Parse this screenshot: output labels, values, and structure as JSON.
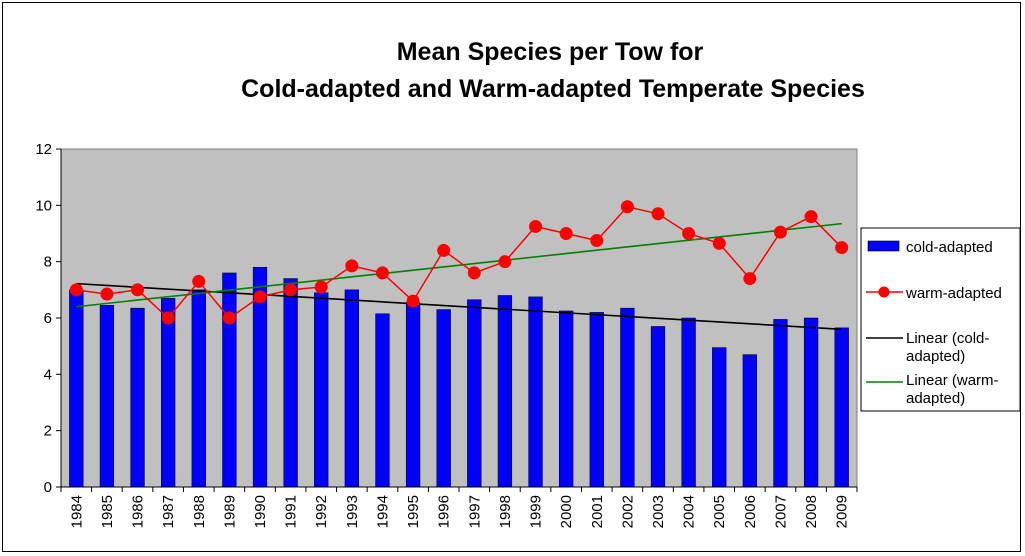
{
  "chart_data": {
    "type": "bar",
    "title": [
      "Mean Species per Tow for",
      "Cold-adapted and Warm-adapted Temperate Species"
    ],
    "xlabel": "",
    "ylabel": "",
    "categories": [
      "1984",
      "1985",
      "1986",
      "1987",
      "1988",
      "1989",
      "1990",
      "1991",
      "1992",
      "1993",
      "1994",
      "1995",
      "1996",
      "1997",
      "1998",
      "1999",
      "2000",
      "2001",
      "2002",
      "2003",
      "2004",
      "2005",
      "2006",
      "2007",
      "2008",
      "2009"
    ],
    "ylim": [
      0,
      12
    ],
    "yticks": [
      0,
      2,
      4,
      6,
      8,
      10,
      12
    ],
    "grid": false,
    "legend_position": "right",
    "series": [
      {
        "name": "cold-adapted",
        "kind": "bar",
        "color": "#0000FF",
        "values": [
          7.0,
          6.45,
          6.35,
          6.7,
          7.0,
          7.6,
          7.8,
          7.4,
          6.9,
          7.0,
          6.15,
          6.55,
          6.3,
          6.65,
          6.8,
          6.75,
          6.25,
          6.2,
          6.35,
          5.7,
          6.0,
          4.95,
          4.7,
          5.95,
          6.0,
          5.65
        ]
      },
      {
        "name": "warm-adapted",
        "kind": "line-marker",
        "color": "#FF0000",
        "values": [
          7.0,
          6.85,
          7.0,
          6.0,
          7.3,
          6.0,
          6.75,
          7.0,
          7.1,
          7.85,
          7.6,
          6.6,
          8.4,
          7.6,
          8.0,
          9.25,
          9.0,
          8.75,
          9.95,
          9.7,
          9.0,
          8.65,
          7.4,
          9.05,
          9.6,
          8.5
        ]
      },
      {
        "name": "Linear (cold-adapted)",
        "legend_lines": [
          "Linear (cold-",
          "adapted)"
        ],
        "kind": "trendline",
        "color": "#000000",
        "start": 7.22,
        "end": 5.6
      },
      {
        "name": "Linear (warm-adapted)",
        "legend_lines": [
          "Linear (warm-",
          "adapted)"
        ],
        "kind": "trendline",
        "color": "#008000",
        "start": 6.4,
        "end": 9.35
      }
    ],
    "plot_background": "#C0C0C0"
  }
}
